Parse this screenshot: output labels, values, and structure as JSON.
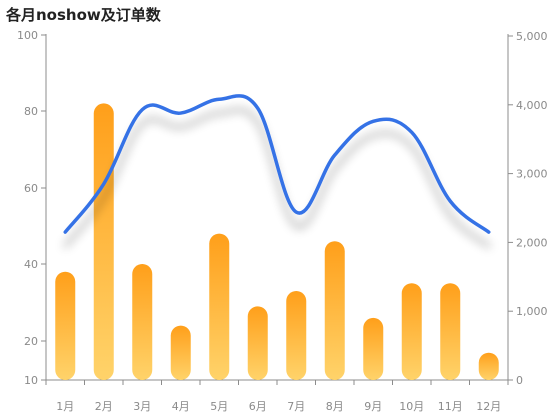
{
  "chart_data": {
    "type": "bar",
    "title": "各月noshow及订单数",
    "categories": [
      "1月",
      "2月",
      "3月",
      "4月",
      "5月",
      "6月",
      "7月",
      "8月",
      "9月",
      "10月",
      "11月",
      "12月"
    ],
    "y_left": {
      "range": [
        10,
        100
      ],
      "ticks": [
        "10",
        "20",
        "40",
        "60",
        "80",
        "100"
      ]
    },
    "y_right": {
      "range": [
        0,
        5000
      ],
      "ticks": [
        "0",
        "1,000",
        "2,000",
        "3,000",
        "4,000",
        "5,000"
      ]
    },
    "series": [
      {
        "type": "bar",
        "axis": "left",
        "values": [
          38,
          82,
          40,
          24,
          48,
          29,
          33,
          46,
          26,
          35,
          35,
          17
        ]
      },
      {
        "type": "line",
        "axis": "right",
        "smooth": true,
        "values": [
          2150,
          2850,
          3930,
          3880,
          4080,
          3950,
          2440,
          3270,
          3760,
          3600,
          2600,
          2150
        ]
      }
    ],
    "grid": false,
    "colors": {
      "bar_top": "#ff9f1a",
      "bar_bottom": "#ffd36a",
      "line": "#3572e6"
    }
  }
}
